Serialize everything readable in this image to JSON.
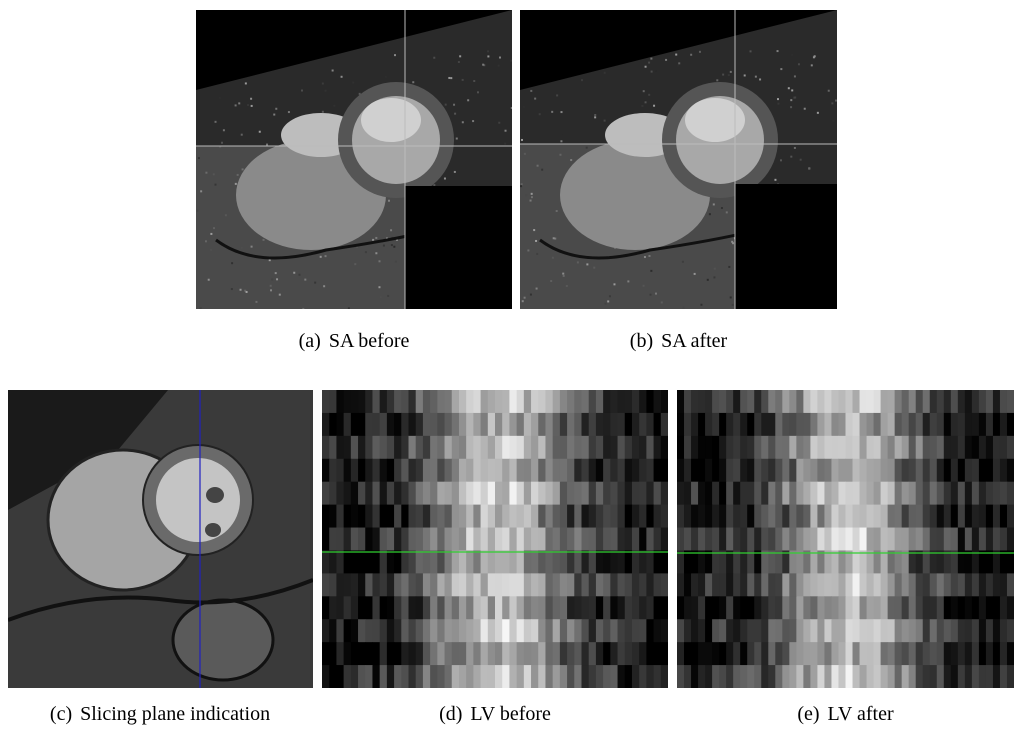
{
  "figure": {
    "panels": [
      {
        "label": "(a)",
        "caption": "SA before"
      },
      {
        "label": "(b)",
        "caption": "SA after"
      },
      {
        "label": "(c)",
        "caption": "Slicing plane indication"
      },
      {
        "label": "(d)",
        "caption": "LV before"
      },
      {
        "label": "(e)",
        "caption": "LV after"
      }
    ]
  }
}
